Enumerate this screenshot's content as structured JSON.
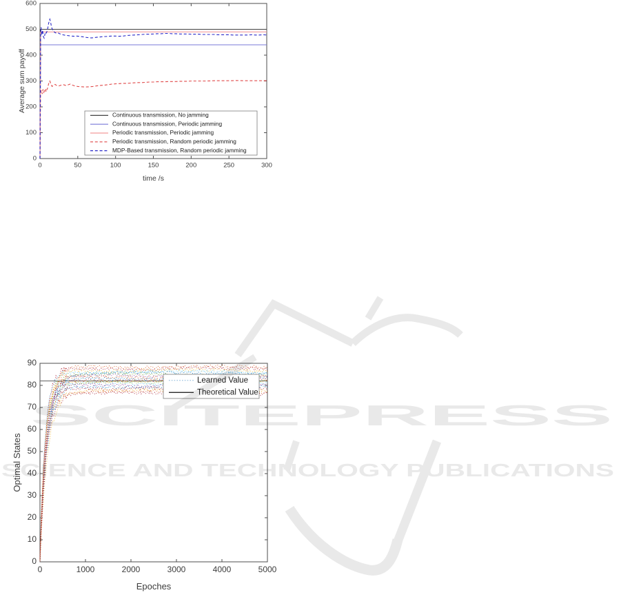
{
  "page": {
    "background": "#ffffff"
  },
  "watermark": {
    "brand": "SCITEPRESS",
    "tagline": "SCIENCE AND TECHNOLOGY PUBLICATIONS",
    "color": "#e9e9e9"
  },
  "chart_data": [
    {
      "id": "payoff",
      "type": "line",
      "title": "",
      "xlabel": "time /s",
      "ylabel": "Average sum payoff",
      "xlim": [
        0,
        300
      ],
      "ylim": [
        0,
        600
      ],
      "xticks": [
        0,
        50,
        100,
        150,
        200,
        250,
        300
      ],
      "yticks": [
        0,
        100,
        200,
        300,
        400,
        500,
        600
      ],
      "grid": false,
      "legend_position": "inside-bottom-center",
      "series": [
        {
          "name": "Continuous transmission, No jamming",
          "color": "#404040",
          "style": "solid",
          "points": [
            [
              0,
              0
            ],
            [
              0.8,
              500
            ],
            [
              300,
              500
            ]
          ]
        },
        {
          "name": "Continuous transmission, Periodic jamming",
          "color": "#7878d8",
          "style": "solid",
          "points": [
            [
              0,
              0
            ],
            [
              0.8,
              440
            ],
            [
              300,
              440
            ]
          ]
        },
        {
          "name": "Periodic transmission, Periodic jamming",
          "color": "#f29a9a",
          "style": "solid",
          "points": [
            [
              0,
              0
            ],
            [
              0.8,
              490
            ],
            [
              300,
              490
            ]
          ]
        },
        {
          "name": "Periodic transmission, Random periodic jamming",
          "color": "#e04848",
          "style": "dashed",
          "points": [
            [
              0,
              0
            ],
            [
              0.8,
              258
            ],
            [
              2,
              264
            ],
            [
              3,
              250
            ],
            [
              4,
              268
            ],
            [
              5,
              256
            ],
            [
              6,
              262
            ],
            [
              7,
              270
            ],
            [
              8,
              258
            ],
            [
              9,
              266
            ],
            [
              10,
              272
            ],
            [
              11,
              284
            ],
            [
              12,
              296
            ],
            [
              13,
              300
            ],
            [
              14,
              292
            ],
            [
              15,
              285
            ],
            [
              16,
              279
            ],
            [
              18,
              283
            ],
            [
              20,
              287
            ],
            [
              22,
              283
            ],
            [
              25,
              281
            ],
            [
              28,
              284
            ],
            [
              31,
              286
            ],
            [
              34,
              283
            ],
            [
              37,
              285
            ],
            [
              40,
              288
            ],
            [
              43,
              284
            ],
            [
              46,
              281
            ],
            [
              50,
              279
            ],
            [
              54,
              278
            ],
            [
              58,
              277
            ],
            [
              62,
              277
            ],
            [
              66,
              278
            ],
            [
              70,
              279
            ],
            [
              75,
              281
            ],
            [
              80,
              283
            ],
            [
              85,
              284
            ],
            [
              90,
              286
            ],
            [
              95,
              288
            ],
            [
              100,
              289
            ],
            [
              105,
              290
            ],
            [
              110,
              291
            ],
            [
              115,
              291
            ],
            [
              120,
              292
            ],
            [
              125,
              293
            ],
            [
              130,
              294
            ],
            [
              135,
              294
            ],
            [
              140,
              295
            ],
            [
              145,
              296
            ],
            [
              150,
              296
            ],
            [
              155,
              297
            ],
            [
              160,
              297
            ],
            [
              165,
              297
            ],
            [
              170,
              298
            ],
            [
              175,
              298
            ],
            [
              180,
              298
            ],
            [
              185,
              299
            ],
            [
              190,
              299
            ],
            [
              195,
              299
            ],
            [
              200,
              300
            ],
            [
              210,
              300
            ],
            [
              220,
              300
            ],
            [
              230,
              301
            ],
            [
              240,
              301
            ],
            [
              250,
              301
            ],
            [
              260,
              302
            ],
            [
              270,
              301
            ],
            [
              280,
              301
            ],
            [
              290,
              301
            ],
            [
              300,
              301
            ]
          ]
        },
        {
          "name": "MDP-Based transmission, Random periodic jamming",
          "color": "#2828c8",
          "style": "dashed",
          "points": [
            [
              0,
              0
            ],
            [
              0.8,
              470
            ],
            [
              1.5,
              508
            ],
            [
              2.5,
              478
            ],
            [
              3.5,
              497
            ],
            [
              4.5,
              472
            ],
            [
              5.5,
              466
            ],
            [
              6.5,
              480
            ],
            [
              7.5,
              490
            ],
            [
              8.5,
              486
            ],
            [
              9.5,
              494
            ],
            [
              10.5,
              507
            ],
            [
              11.5,
              524
            ],
            [
              13,
              539
            ],
            [
              14,
              528
            ],
            [
              15,
              512
            ],
            [
              16,
              503
            ],
            [
              17,
              497
            ],
            [
              18.5,
              491
            ],
            [
              20,
              487
            ],
            [
              22,
              485
            ],
            [
              24,
              486
            ],
            [
              26,
              483
            ],
            [
              28,
              481
            ],
            [
              30,
              479
            ],
            [
              33,
              477
            ],
            [
              36,
              476
            ],
            [
              39,
              475
            ],
            [
              42,
              474
            ],
            [
              45,
              473
            ],
            [
              48,
              474
            ],
            [
              51,
              473
            ],
            [
              54,
              472
            ],
            [
              57,
              471
            ],
            [
              60,
              469
            ],
            [
              63,
              468
            ],
            [
              66,
              467
            ],
            [
              69,
              467
            ],
            [
              72,
              468
            ],
            [
              75,
              469
            ],
            [
              78,
              470
            ],
            [
              81,
              471
            ],
            [
              84,
              472
            ],
            [
              87,
              472
            ],
            [
              90,
              473
            ],
            [
              95,
              474
            ],
            [
              100,
              474
            ],
            [
              105,
              473
            ],
            [
              110,
              474
            ],
            [
              115,
              476
            ],
            [
              120,
              477
            ],
            [
              125,
              478
            ],
            [
              130,
              479
            ],
            [
              135,
              480
            ],
            [
              140,
              481
            ],
            [
              145,
              481
            ],
            [
              150,
              482
            ],
            [
              155,
              483
            ],
            [
              160,
              483
            ],
            [
              165,
              484
            ],
            [
              170,
              484
            ],
            [
              175,
              483
            ],
            [
              180,
              483
            ],
            [
              185,
              482
            ],
            [
              190,
              482
            ],
            [
              195,
              482
            ],
            [
              200,
              481
            ],
            [
              205,
              481
            ],
            [
              210,
              481
            ],
            [
              215,
              480
            ],
            [
              220,
              480
            ],
            [
              225,
              480
            ],
            [
              230,
              480
            ],
            [
              235,
              479
            ],
            [
              240,
              479
            ],
            [
              245,
              479
            ],
            [
              250,
              479
            ],
            [
              255,
              478
            ],
            [
              260,
              478
            ],
            [
              265,
              478
            ],
            [
              270,
              478
            ],
            [
              275,
              478
            ],
            [
              280,
              479
            ],
            [
              285,
              478
            ],
            [
              290,
              478
            ],
            [
              295,
              479
            ],
            [
              300,
              478
            ]
          ]
        }
      ]
    },
    {
      "id": "qlearning",
      "type": "line",
      "title": "",
      "xlabel": "Epoches",
      "ylabel": "Optimal States",
      "xlim": [
        0,
        5000
      ],
      "ylim": [
        0,
        90
      ],
      "xticks": [
        0,
        1000,
        2000,
        3000,
        4000,
        5000
      ],
      "yticks": [
        0,
        10,
        20,
        30,
        40,
        50,
        60,
        70,
        80,
        90
      ],
      "grid": false,
      "legend_position": "inside-top-right",
      "legend": [
        {
          "label": "Learned Value",
          "color": "#9bc2e0",
          "style": "dotted"
        },
        {
          "label": "Theoretical Value",
          "color": "#111111",
          "style": "solid"
        }
      ],
      "theoretical": {
        "value": 82,
        "color": "#6e6e6e"
      },
      "learned_curves": [
        {
          "asymptote": 88.4,
          "tau": 150,
          "color": "#D95319"
        },
        {
          "asymptote": 87.6,
          "tau": 120,
          "color": "#A2142F"
        },
        {
          "asymptote": 86.8,
          "tau": 135,
          "color": "#EDB120"
        },
        {
          "asymptote": 86.1,
          "tau": 110,
          "color": "#4DBEEE"
        },
        {
          "asymptote": 85.5,
          "tau": 160,
          "color": "#0072BD"
        },
        {
          "asymptote": 84.9,
          "tau": 125,
          "color": "#77AC30"
        },
        {
          "asymptote": 84.3,
          "tau": 140,
          "color": "#7E2F8E"
        },
        {
          "asymptote": 83.7,
          "tau": 115,
          "color": "#D95319"
        },
        {
          "asymptote": 83.1,
          "tau": 150,
          "color": "#0072BD"
        },
        {
          "asymptote": 82.5,
          "tau": 130,
          "color": "#A2142F"
        },
        {
          "asymptote": 81.9,
          "tau": 105,
          "color": "#EDB120"
        },
        {
          "asymptote": 81.3,
          "tau": 145,
          "color": "#77AC30"
        },
        {
          "asymptote": 80.7,
          "tau": 120,
          "color": "#4DBEEE"
        },
        {
          "asymptote": 80.1,
          "tau": 135,
          "color": "#7E2F8E"
        },
        {
          "asymptote": 79.4,
          "tau": 155,
          "color": "#0072BD"
        },
        {
          "asymptote": 78.7,
          "tau": 110,
          "color": "#A2142F"
        },
        {
          "asymptote": 77.9,
          "tau": 165,
          "color": "#EDB120"
        },
        {
          "asymptote": 77.1,
          "tau": 125,
          "color": "#D95319"
        },
        {
          "asymptote": 76.3,
          "tau": 140,
          "color": "#A2142F"
        }
      ]
    }
  ]
}
